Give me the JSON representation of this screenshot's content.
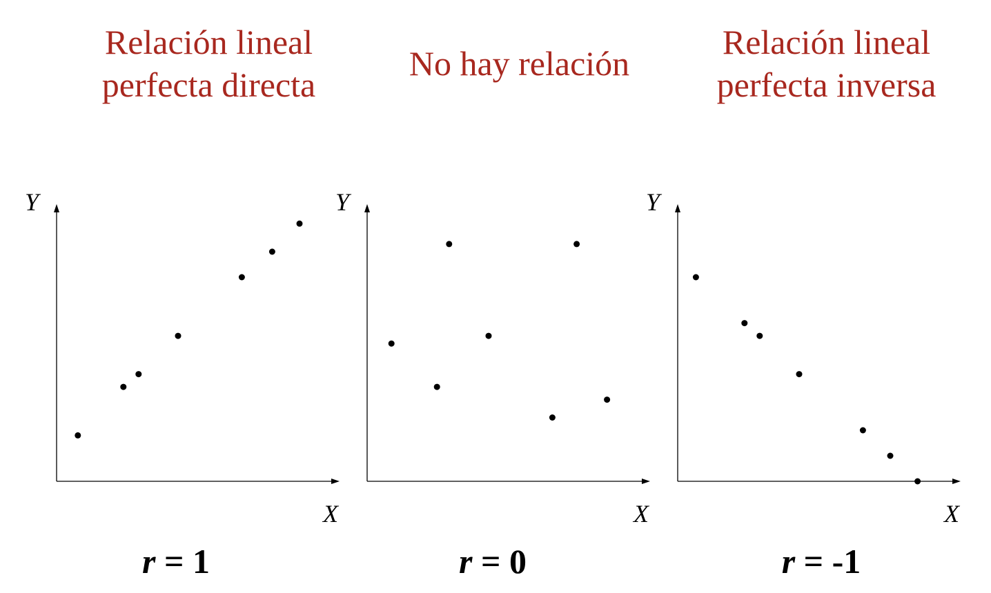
{
  "chart_data": [
    {
      "type": "scatter",
      "title": "Relación lineal\nperfecta directa",
      "xlabel": "X",
      "ylabel": "Y",
      "r_label": {
        "var": "r",
        "rest": " = 1"
      },
      "points": [
        {
          "x": 0.7,
          "y": 1.8
        },
        {
          "x": 2.2,
          "y": 3.7
        },
        {
          "x": 2.7,
          "y": 4.2
        },
        {
          "x": 4.0,
          "y": 5.7
        },
        {
          "x": 6.1,
          "y": 8.0
        },
        {
          "x": 7.1,
          "y": 9.0
        },
        {
          "x": 8.0,
          "y": 10.1
        }
      ]
    },
    {
      "type": "scatter",
      "title": "No hay relación",
      "xlabel": "X",
      "ylabel": "Y",
      "r_label": {
        "var": "r",
        "rest": " = 0"
      },
      "points": [
        {
          "x": 0.8,
          "y": 5.4
        },
        {
          "x": 2.3,
          "y": 3.7
        },
        {
          "x": 2.7,
          "y": 9.3
        },
        {
          "x": 4.0,
          "y": 5.7
        },
        {
          "x": 6.1,
          "y": 2.5
        },
        {
          "x": 6.9,
          "y": 9.3
        },
        {
          "x": 7.9,
          "y": 3.2
        }
      ]
    },
    {
      "type": "scatter",
      "title": "Relación lineal\nperfecta inversa",
      "xlabel": "X",
      "ylabel": "Y",
      "r_label": {
        "var": "r",
        "rest": " = -1"
      },
      "points": [
        {
          "x": 0.6,
          "y": 8.0
        },
        {
          "x": 2.2,
          "y": 6.2
        },
        {
          "x": 2.7,
          "y": 5.7
        },
        {
          "x": 4.0,
          "y": 4.2
        },
        {
          "x": 6.1,
          "y": 2.0
        },
        {
          "x": 7.0,
          "y": 1.0
        },
        {
          "x": 7.9,
          "y": 0.0
        }
      ]
    }
  ]
}
